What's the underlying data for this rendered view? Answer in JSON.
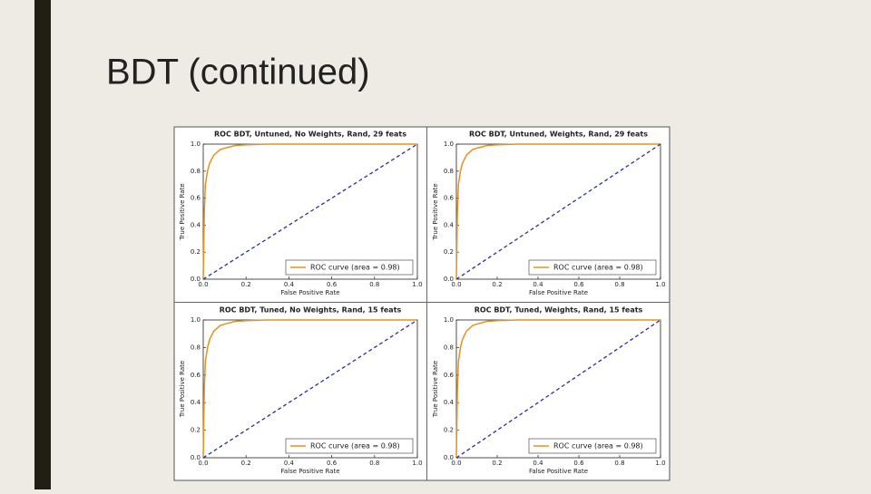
{
  "title": "BDT (continued)",
  "chart_data": [
    {
      "type": "line",
      "title": "ROC BDT, Untuned, No Weights, Rand, 29 feats",
      "xlabel": "False Positive Rate",
      "ylabel": "True Positive Rate",
      "x": [
        0,
        0.005,
        0.01,
        0.02,
        0.03,
        0.05,
        0.08,
        0.1,
        0.15,
        0.2,
        0.3,
        0.5,
        1
      ],
      "series": [
        {
          "name": "ROC curve (area = 0.98)",
          "color": "#e8901a",
          "values": [
            0,
            0.5,
            0.7,
            0.8,
            0.86,
            0.92,
            0.96,
            0.97,
            0.99,
            0.995,
            1,
            1,
            1
          ]
        },
        {
          "color": "#2a2f9a",
          "dashed": true,
          "values": [
            0,
            0.005,
            0.01,
            0.02,
            0.03,
            0.05,
            0.08,
            0.1,
            0.15,
            0.2,
            0.3,
            0.5,
            1
          ]
        }
      ],
      "xlim": [
        0,
        1
      ],
      "ylim": [
        0,
        1
      ],
      "xticks": [
        {
          "value": 0,
          "label": "0.0"
        },
        0.2,
        0.4,
        0.6,
        0.8,
        {
          "value": 1,
          "label": "1.0"
        }
      ],
      "yticks": [
        {
          "value": 0,
          "label": "0.0"
        },
        0.2,
        0.4,
        0.6,
        0.8,
        {
          "value": 1,
          "label": "1.0"
        }
      ],
      "legend": "lower right"
    },
    {
      "type": "line",
      "title": "ROC BDT, Untuned, Weights, Rand, 29 feats",
      "xlabel": "False Positive Rate",
      "ylabel": "True Positive Rate",
      "x": [
        0,
        0.005,
        0.01,
        0.02,
        0.03,
        0.05,
        0.08,
        0.1,
        0.15,
        0.2,
        0.3,
        0.5,
        1
      ],
      "series": [
        {
          "name": "ROC curve (area = 0.98)",
          "color": "#e8901a",
          "values": [
            0,
            0.5,
            0.7,
            0.8,
            0.86,
            0.92,
            0.96,
            0.97,
            0.99,
            0.995,
            1,
            1,
            1
          ]
        },
        {
          "color": "#2a2f9a",
          "dashed": true,
          "values": [
            0,
            0.005,
            0.01,
            0.02,
            0.03,
            0.05,
            0.08,
            0.1,
            0.15,
            0.2,
            0.3,
            0.5,
            1
          ]
        }
      ],
      "xlim": [
        0,
        1
      ],
      "ylim": [
        0,
        1
      ],
      "xticks": [
        {
          "value": 0,
          "label": "0.0"
        },
        0.2,
        0.4,
        0.6,
        0.8,
        {
          "value": 1,
          "label": "1.0"
        }
      ],
      "yticks": [
        {
          "value": 0,
          "label": "0.0"
        },
        0.2,
        0.4,
        0.6,
        0.8,
        {
          "value": 1,
          "label": "1.0"
        }
      ],
      "legend": "lower right"
    },
    {
      "type": "line",
      "title": "ROC BDT, Tuned, No Weights, Rand, 15 feats",
      "xlabel": "False Positive Rate",
      "ylabel": "True Positive Rate",
      "x": [
        0,
        0.005,
        0.01,
        0.02,
        0.03,
        0.05,
        0.08,
        0.1,
        0.15,
        0.2,
        0.3,
        0.5,
        1
      ],
      "series": [
        {
          "name": "ROC curve (area = 0.98)",
          "color": "#e8901a",
          "values": [
            0,
            0.5,
            0.7,
            0.8,
            0.86,
            0.92,
            0.96,
            0.97,
            0.99,
            0.995,
            1,
            1,
            1
          ]
        },
        {
          "color": "#2a2f9a",
          "dashed": true,
          "values": [
            0,
            0.005,
            0.01,
            0.02,
            0.03,
            0.05,
            0.08,
            0.1,
            0.15,
            0.2,
            0.3,
            0.5,
            1
          ]
        }
      ],
      "xlim": [
        0,
        1
      ],
      "ylim": [
        0,
        1
      ],
      "xticks": [
        {
          "value": 0,
          "label": "0.0"
        },
        0.2,
        0.4,
        0.6,
        0.8,
        {
          "value": 1,
          "label": "1.0"
        }
      ],
      "yticks": [
        {
          "value": 0,
          "label": "0.0"
        },
        0.2,
        0.4,
        0.6,
        0.8,
        {
          "value": 1,
          "label": "1.0"
        }
      ],
      "legend": "lower right"
    },
    {
      "type": "line",
      "title": "ROC BDT, Tuned, Weights, Rand, 15 feats",
      "xlabel": "False Positive Rate",
      "ylabel": "True Positive Rate",
      "x": [
        0,
        0.005,
        0.01,
        0.02,
        0.03,
        0.05,
        0.08,
        0.1,
        0.15,
        0.2,
        0.3,
        0.5,
        1
      ],
      "series": [
        {
          "name": "ROC curve (area = 0.98)",
          "color": "#e8901a",
          "values": [
            0,
            0.5,
            0.7,
            0.8,
            0.86,
            0.92,
            0.96,
            0.97,
            0.99,
            0.995,
            1,
            1,
            1
          ]
        },
        {
          "color": "#2a2f9a",
          "dashed": true,
          "values": [
            0,
            0.005,
            0.01,
            0.02,
            0.03,
            0.05,
            0.08,
            0.1,
            0.15,
            0.2,
            0.3,
            0.5,
            1
          ]
        }
      ],
      "xlim": [
        0,
        1
      ],
      "ylim": [
        0,
        1
      ],
      "xticks": [
        {
          "value": 0,
          "label": "0.0"
        },
        0.2,
        0.4,
        0.6,
        0.8,
        {
          "value": 1,
          "label": "1.0"
        }
      ],
      "yticks": [
        {
          "value": 0,
          "label": "0.0"
        },
        0.2,
        0.4,
        0.6,
        0.8,
        {
          "value": 1,
          "label": "1.0"
        }
      ],
      "legend": "lower right"
    }
  ]
}
